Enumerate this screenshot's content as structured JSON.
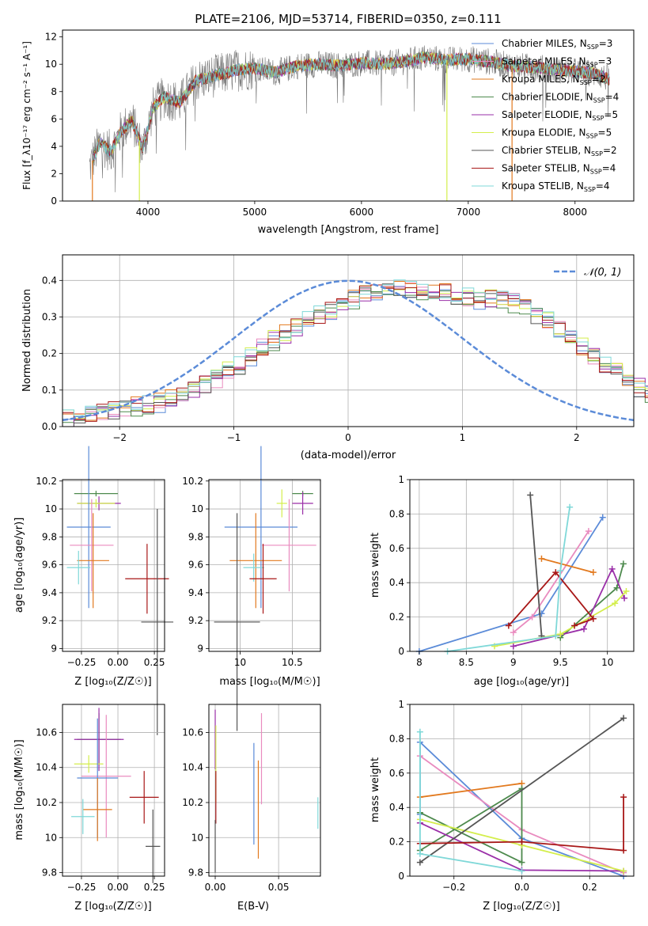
{
  "figure_title": "PLATE=2106, MJD=53714, FIBERID=0350, z=0.111",
  "colors": {
    "chabrier_miles": "#5b8bd8",
    "salpeter_miles": "#e98bbf",
    "kroupa_miles": "#e2791e",
    "chabrier_elodie": "#4d8a4d",
    "salpeter_elodie": "#9a2fa8",
    "kroupa_elodie": "#d4ee4c",
    "chabrier_stelib": "#555555",
    "salpeter_stelib": "#a81717",
    "kroupa_stelib": "#7fd8d8"
  },
  "chart_data": [
    {
      "type": "line",
      "title": "PLATE=2106, MJD=53714, FIBERID=0350, z=0.111",
      "xlabel": "wavelength [Angstrom, rest frame]",
      "ylabel": "Flux [f_λ10⁻¹⁷ erg cm⁻² s⁻¹ A⁻¹]",
      "xlim": [
        3200,
        8550
      ],
      "ylim": [
        0,
        12.5
      ],
      "xticks": [
        4000,
        5000,
        6000,
        7000,
        8000
      ],
      "yticks": [
        0,
        2,
        4,
        6,
        8,
        10,
        12
      ],
      "legend_position": "right",
      "series": [
        {
          "name": "Chabrier MILES, N_SSP=3",
          "color": "#5b8bd8"
        },
        {
          "name": "Salpeter MILES, N_SSP=3",
          "color": "#e98bbf"
        },
        {
          "name": "Kroupa MILES, N_SSP=2",
          "color": "#e2791e"
        },
        {
          "name": "Chabrier ELODIE, N_SSP=4",
          "color": "#4d8a4d"
        },
        {
          "name": "Salpeter ELODIE, N_SSP=5",
          "color": "#9a2fa8"
        },
        {
          "name": "Kroupa ELODIE, N_SSP=5",
          "color": "#d4ee4c"
        },
        {
          "name": "Chabrier STELIB, N_SSP=2",
          "color": "#555555"
        },
        {
          "name": "Salpeter STELIB, N_SSP=4",
          "color": "#a81717"
        },
        {
          "name": "Kroupa STELIB, N_SSP=4",
          "color": "#7fd8d8"
        }
      ],
      "continuum": {
        "x": [
          3450,
          3550,
          3650,
          3750,
          3850,
          3950,
          4050,
          4150,
          4300,
          4450,
          4650,
          4850,
          5000,
          5200,
          5400,
          5600,
          5800,
          6000,
          6200,
          6400,
          6600,
          6800,
          7000,
          7200,
          7400,
          7600,
          7800,
          8000,
          8200,
          8320
        ],
        "y": [
          2.4,
          4.3,
          3.6,
          5.1,
          5.9,
          3.8,
          6.8,
          7.6,
          7.2,
          8.8,
          9.2,
          9.6,
          9.7,
          9.4,
          9.9,
          10.0,
          9.9,
          10.1,
          10.0,
          10.2,
          10.5,
          10.3,
          10.4,
          10.2,
          9.9,
          9.8,
          9.6,
          9.5,
          9.3,
          8.9
        ]
      },
      "flux_drops": [
        3480,
        3920,
        6800,
        7410
      ]
    },
    {
      "type": "histogram",
      "xlabel": "(data-model)/error",
      "ylabel": "Normed distribution",
      "xlim": [
        -2.5,
        2.5
      ],
      "ylim": [
        0,
        0.47
      ],
      "xticks": [
        -2,
        -1,
        0,
        1,
        2
      ],
      "yticks": [
        0.0,
        0.1,
        0.2,
        0.3,
        0.4
      ],
      "legend_position": "upper right",
      "reference_curve": {
        "name": "𝒩(0, 1)",
        "color": "#5b8bd8",
        "style": "dashed",
        "mu": 0,
        "sigma": 1
      },
      "bin_width": 0.1,
      "bin_start": -2.5,
      "shape_base": [
        0.02,
        0.03,
        0.035,
        0.04,
        0.045,
        0.05,
        0.055,
        0.06,
        0.065,
        0.075,
        0.085,
        0.1,
        0.115,
        0.13,
        0.15,
        0.17,
        0.19,
        0.215,
        0.235,
        0.25,
        0.27,
        0.29,
        0.305,
        0.32,
        0.335,
        0.35,
        0.36,
        0.37,
        0.375,
        0.38,
        0.38,
        0.375,
        0.37,
        0.365,
        0.36,
        0.355,
        0.35,
        0.35,
        0.345,
        0.34,
        0.33,
        0.31,
        0.29,
        0.265,
        0.24,
        0.215,
        0.19,
        0.17,
        0.15,
        0.13,
        0.11,
        0.095,
        0.08,
        0.07,
        0.06,
        0.055,
        0.05,
        0.045,
        0.04,
        0.035
      ],
      "noise_amplitude": 0.025
    },
    {
      "type": "errorbar",
      "xlabel": "Z [log₁₀(Z/Z☉)]",
      "ylabel": "age  [log₁₀(age/yr)]",
      "xlim": [
        -0.38,
        0.32
      ],
      "ylim": [
        8.98,
        10.21
      ],
      "xticks": [
        -0.25,
        0.0,
        0.25
      ],
      "xtick_labels": [
        "−0.25",
        "0.00",
        "0.25"
      ],
      "yticks": [
        9.0,
        9.2,
        9.4,
        9.6,
        9.8,
        10.0,
        10.2
      ],
      "points": [
        {
          "color": "#4d8a4d",
          "x": -0.15,
          "xerr": 0.15,
          "y": 10.11,
          "yerr": 0.02
        },
        {
          "color": "#9a2fa8",
          "x": -0.13,
          "xerr": 0.15,
          "y": 10.04,
          "yerr": 0.05
        },
        {
          "color": "#d4ee4c",
          "x": -0.15,
          "xerr": 0.13,
          "y": 10.04,
          "yerr": 0.03
        },
        {
          "color": "#5b8bd8",
          "x": -0.2,
          "xerr": 0.15,
          "y": 9.87,
          "yerr": 0.58
        },
        {
          "color": "#e98bbf",
          "x": -0.18,
          "xerr": 0.15,
          "y": 9.74,
          "yerr": 0.33
        },
        {
          "color": "#e2791e",
          "x": -0.17,
          "xerr": 0.11,
          "y": 9.63,
          "yerr": 0.34
        },
        {
          "color": "#7fd8d8",
          "x": -0.27,
          "xerr": 0.08,
          "y": 9.58,
          "yerr": 0.12
        },
        {
          "color": "#a81717",
          "x": 0.2,
          "xerr": 0.15,
          "y": 9.5,
          "yerr": 0.25
        },
        {
          "color": "#555555",
          "x": 0.27,
          "xerr": 0.11,
          "y": 9.19,
          "yerr": 0.81
        }
      ]
    },
    {
      "type": "errorbar",
      "xlabel": "mass [log₁₀(M/M☉)]",
      "ylabel": "",
      "xlim": [
        9.7,
        10.77
      ],
      "ylim": [
        8.98,
        10.21
      ],
      "xticks": [
        10.0,
        10.5
      ],
      "yticks": [
        9.0,
        9.2,
        9.4,
        9.6,
        9.8,
        10.0,
        10.2
      ],
      "points": [
        {
          "color": "#4d8a4d",
          "x": 10.6,
          "xerr": 0.1,
          "y": 10.11,
          "yerr": 0.02
        },
        {
          "color": "#9a2fa8",
          "x": 10.6,
          "xerr": 0.1,
          "y": 10.04,
          "yerr": 0.08
        },
        {
          "color": "#d4ee4c",
          "x": 10.4,
          "xerr": 0.05,
          "y": 10.04,
          "yerr": 0.1
        },
        {
          "color": "#5b8bd8",
          "x": 10.2,
          "xerr": 0.35,
          "y": 9.87,
          "yerr": 0.58
        },
        {
          "color": "#e98bbf",
          "x": 10.47,
          "xerr": 0.26,
          "y": 9.74,
          "yerr": 0.33
        },
        {
          "color": "#e2791e",
          "x": 10.15,
          "xerr": 0.25,
          "y": 9.63,
          "yerr": 0.34
        },
        {
          "color": "#7fd8d8",
          "x": 10.13,
          "xerr": 0.1,
          "y": 9.58,
          "yerr": 0.1
        },
        {
          "color": "#a81717",
          "x": 10.22,
          "xerr": 0.13,
          "y": 9.5,
          "yerr": 0.25
        },
        {
          "color": "#555555",
          "x": 9.97,
          "xerr": 0.22,
          "y": 9.19,
          "yerr": 0.78
        }
      ]
    },
    {
      "type": "line",
      "xlabel": "age  [log₁₀(age/yr)]",
      "ylabel": "mass weight",
      "xlim": [
        7.9,
        10.28
      ],
      "ylim": [
        0,
        1.0
      ],
      "xticks": [
        8.0,
        8.5,
        9.0,
        9.5,
        10.0
      ],
      "yticks": [
        0.0,
        0.2,
        0.4,
        0.6,
        0.8,
        1.0
      ],
      "series": [
        {
          "color": "#5b8bd8",
          "x": [
            8.0,
            9.3,
            9.95
          ],
          "y": [
            0.0,
            0.22,
            0.78
          ]
        },
        {
          "color": "#e98bbf",
          "x": [
            9.0,
            9.2,
            9.8
          ],
          "y": [
            0.11,
            0.2,
            0.7
          ]
        },
        {
          "color": "#e2791e",
          "x": [
            9.3,
            9.85
          ],
          "y": [
            0.54,
            0.46
          ]
        },
        {
          "color": "#4d8a4d",
          "x": [
            9.5,
            10.1,
            10.17
          ],
          "y": [
            0.08,
            0.37,
            0.51
          ]
        },
        {
          "color": "#9a2fa8",
          "x": [
            9.0,
            9.75,
            10.05,
            10.18
          ],
          "y": [
            0.03,
            0.13,
            0.48,
            0.31
          ]
        },
        {
          "color": "#d4ee4c",
          "x": [
            8.8,
            9.5,
            10.08,
            10.2
          ],
          "y": [
            0.03,
            0.1,
            0.28,
            0.35
          ]
        },
        {
          "color": "#555555",
          "x": [
            9.18,
            9.3
          ],
          "y": [
            0.91,
            0.09
          ]
        },
        {
          "color": "#a81717",
          "x": [
            8.95,
            9.45,
            9.85,
            9.65
          ],
          "y": [
            0.15,
            0.46,
            0.19,
            0.15
          ]
        },
        {
          "color": "#7fd8d8",
          "x": [
            8.3,
            9.45,
            9.5,
            9.6
          ],
          "y": [
            0.0,
            0.09,
            0.47,
            0.84
          ]
        }
      ]
    },
    {
      "type": "errorbar",
      "xlabel": "Z [log₁₀(Z/Z☉)]",
      "ylabel": "mass [log₁₀(M/M☉)]",
      "xlim": [
        -0.38,
        0.32
      ],
      "ylim": [
        9.78,
        10.76
      ],
      "xticks": [
        -0.25,
        0.0,
        0.25
      ],
      "xtick_labels": [
        "−0.25",
        "0.00",
        "0.25"
      ],
      "yticks": [
        9.8,
        10.0,
        10.2,
        10.4,
        10.6
      ],
      "points": [
        {
          "color": "#4d8a4d",
          "x": -0.13,
          "xerr": 0.15,
          "y": 10.56,
          "yerr": 0.15
        },
        {
          "color": "#9a2fa8",
          "x": -0.13,
          "xerr": 0.17,
          "y": 10.56,
          "yerr": 0.18
        },
        {
          "color": "#d4ee4c",
          "x": -0.2,
          "xerr": 0.1,
          "y": 10.42,
          "yerr": 0.05
        },
        {
          "color": "#e98bbf",
          "x": -0.08,
          "xerr": 0.17,
          "y": 10.35,
          "yerr": 0.35
        },
        {
          "color": "#5b8bd8",
          "x": -0.14,
          "xerr": 0.14,
          "y": 10.34,
          "yerr": 0.34
        },
        {
          "color": "#a81717",
          "x": 0.18,
          "xerr": 0.1,
          "y": 10.23,
          "yerr": 0.15
        },
        {
          "color": "#e2791e",
          "x": -0.14,
          "xerr": 0.1,
          "y": 10.16,
          "yerr": 0.18
        },
        {
          "color": "#7fd8d8",
          "x": -0.24,
          "xerr": 0.08,
          "y": 10.12,
          "yerr": 0.1
        },
        {
          "color": "#555555",
          "x": 0.24,
          "xerr": 0.05,
          "y": 9.95,
          "yerr": 0.21
        }
      ]
    },
    {
      "type": "errorbar",
      "xlabel": "E(B-V)",
      "ylabel": "",
      "xlim": [
        -0.005,
        0.083
      ],
      "ylim": [
        9.78,
        10.76
      ],
      "xticks": [
        0.0,
        0.05
      ],
      "xtick_labels": [
        "0.00",
        "0.05"
      ],
      "yticks": [
        9.8,
        10.0,
        10.2,
        10.4,
        10.6
      ],
      "points": [
        {
          "color": "#9a2fa8",
          "x": 0.0,
          "y": 10.56,
          "yerr": 0.17
        },
        {
          "color": "#d4ee4c",
          "x": 0.0005,
          "y": 10.42,
          "yerr": 0.22
        },
        {
          "color": "#a81717",
          "x": 0.0005,
          "y": 10.23,
          "yerr": 0.15
        },
        {
          "color": "#555555",
          "x": 0.0,
          "y": 9.95,
          "yerr": 0.15
        },
        {
          "color": "#5b8bd8",
          "x": 0.0305,
          "y": 10.25,
          "yerr": 0.29
        },
        {
          "color": "#e2791e",
          "x": 0.034,
          "y": 10.16,
          "yerr": 0.28
        },
        {
          "color": "#e98bbf",
          "x": 0.0365,
          "y": 10.45,
          "yerr": 0.26
        },
        {
          "color": "#7fd8d8",
          "x": 0.081,
          "y": 10.14,
          "yerr": 0.09
        }
      ]
    },
    {
      "type": "line",
      "xlabel": "Z [log₁₀(Z/Z☉)]",
      "ylabel": "mass weight",
      "xlim": [
        -0.33,
        0.33
      ],
      "ylim": [
        0,
        1.0
      ],
      "xticks": [
        -0.2,
        0.0,
        0.2
      ],
      "xtick_labels": [
        "−0.2",
        "0.0",
        "0.2"
      ],
      "yticks": [
        0.0,
        0.2,
        0.4,
        0.6,
        0.8,
        1.0
      ],
      "series": [
        {
          "color": "#5b8bd8",
          "x": [
            -0.3,
            -0.3,
            0.0,
            0.3
          ],
          "y": [
            0.36,
            0.78,
            0.22,
            0.0
          ]
        },
        {
          "color": "#e98bbf",
          "x": [
            -0.3,
            0.0,
            0.3
          ],
          "y": [
            0.7,
            0.27,
            0.02
          ]
        },
        {
          "color": "#e2791e",
          "x": [
            -0.3,
            0.0
          ],
          "y": [
            0.46,
            0.54
          ]
        },
        {
          "color": "#4d8a4d",
          "x": [
            -0.3,
            0.0,
            0.0,
            -0.3
          ],
          "y": [
            0.37,
            0.08,
            0.51,
            0.15
          ]
        },
        {
          "color": "#9a2fa8",
          "x": [
            -0.3,
            0.0,
            0.3
          ],
          "y": [
            0.31,
            0.035,
            0.03
          ]
        },
        {
          "color": "#d4ee4c",
          "x": [
            -0.3,
            0.0,
            0.3
          ],
          "y": [
            0.33,
            0.18,
            0.03
          ]
        },
        {
          "color": "#555555",
          "x": [
            -0.3,
            0.3
          ],
          "y": [
            0.08,
            0.92
          ]
        },
        {
          "color": "#a81717",
          "x": [
            -0.3,
            0.0,
            0.3,
            0.3
          ],
          "y": [
            0.19,
            0.2,
            0.15,
            0.46
          ]
        },
        {
          "color": "#7fd8d8",
          "x": [
            -0.3,
            -0.3,
            0.0
          ],
          "y": [
            0.84,
            0.13,
            0.03
          ]
        }
      ]
    }
  ]
}
